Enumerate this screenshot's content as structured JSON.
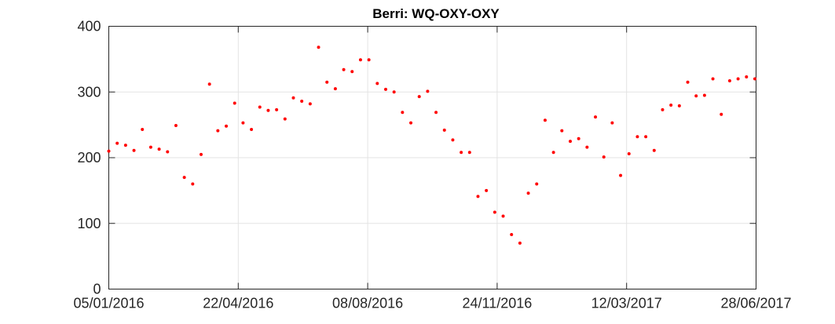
{
  "chart_data": {
    "type": "scatter",
    "title": "Berri: WQ-OXY-OXY",
    "xlabel": "",
    "ylabel": "",
    "xlim": [
      "2016-01-05",
      "2017-06-28"
    ],
    "ylim": [
      0,
      400
    ],
    "grid": true,
    "marker_color": "#ff0000",
    "x_ticks": [
      "05/01/2016",
      "22/04/2016",
      "08/08/2016",
      "24/11/2016",
      "12/03/2017",
      "28/06/2017"
    ],
    "x_tick_dates": [
      "2016-01-05",
      "2016-04-22",
      "2016-08-08",
      "2016-11-24",
      "2017-03-12",
      "2017-06-28"
    ],
    "y_ticks": [
      "0",
      "100",
      "200",
      "300",
      "400"
    ],
    "y_tick_values": [
      0,
      100,
      200,
      300,
      400
    ],
    "series": [
      {
        "points": [
          [
            "2016-01-05",
            210
          ],
          [
            "2016-01-12",
            222
          ],
          [
            "2016-01-19",
            219
          ],
          [
            "2016-01-26",
            211
          ],
          [
            "2016-02-02",
            243
          ],
          [
            "2016-02-09",
            216
          ],
          [
            "2016-02-16",
            213
          ],
          [
            "2016-02-23",
            209
          ],
          [
            "2016-03-01",
            249
          ],
          [
            "2016-03-08",
            170
          ],
          [
            "2016-03-15",
            160
          ],
          [
            "2016-03-22",
            205
          ],
          [
            "2016-03-29",
            312
          ],
          [
            "2016-04-05",
            241
          ],
          [
            "2016-04-12",
            248
          ],
          [
            "2016-04-19",
            283
          ],
          [
            "2016-04-26",
            253
          ],
          [
            "2016-05-03",
            243
          ],
          [
            "2016-05-10",
            277
          ],
          [
            "2016-05-17",
            272
          ],
          [
            "2016-05-24",
            273
          ],
          [
            "2016-05-31",
            259
          ],
          [
            "2016-06-07",
            291
          ],
          [
            "2016-06-14",
            286
          ],
          [
            "2016-06-21",
            282
          ],
          [
            "2016-06-28",
            368
          ],
          [
            "2016-07-05",
            315
          ],
          [
            "2016-07-12",
            305
          ],
          [
            "2016-07-19",
            334
          ],
          [
            "2016-07-26",
            331
          ],
          [
            "2016-08-02",
            349
          ],
          [
            "2016-08-09",
            349
          ],
          [
            "2016-08-16",
            313
          ],
          [
            "2016-08-23",
            304
          ],
          [
            "2016-08-30",
            300
          ],
          [
            "2016-09-06",
            269
          ],
          [
            "2016-09-13",
            253
          ],
          [
            "2016-09-20",
            293
          ],
          [
            "2016-09-27",
            301
          ],
          [
            "2016-10-04",
            269
          ],
          [
            "2016-10-11",
            242
          ],
          [
            "2016-10-18",
            227
          ],
          [
            "2016-10-25",
            208
          ],
          [
            "2016-11-01",
            208
          ],
          [
            "2016-11-08",
            141
          ],
          [
            "2016-11-15",
            150
          ],
          [
            "2016-11-22",
            117
          ],
          [
            "2016-11-29",
            111
          ],
          [
            "2016-12-06",
            83
          ],
          [
            "2016-12-13",
            70
          ],
          [
            "2016-12-20",
            146
          ],
          [
            "2016-12-27",
            160
          ],
          [
            "2017-01-03",
            257
          ],
          [
            "2017-01-10",
            208
          ],
          [
            "2017-01-17",
            241
          ],
          [
            "2017-01-24",
            225
          ],
          [
            "2017-01-31",
            229
          ],
          [
            "2017-02-07",
            216
          ],
          [
            "2017-02-14",
            262
          ],
          [
            "2017-02-21",
            201
          ],
          [
            "2017-02-28",
            253
          ],
          [
            "2017-03-07",
            173
          ],
          [
            "2017-03-14",
            206
          ],
          [
            "2017-03-21",
            232
          ],
          [
            "2017-03-28",
            232
          ],
          [
            "2017-04-04",
            211
          ],
          [
            "2017-04-11",
            273
          ],
          [
            "2017-04-18",
            280
          ],
          [
            "2017-04-25",
            279
          ],
          [
            "2017-05-02",
            315
          ],
          [
            "2017-05-09",
            294
          ],
          [
            "2017-05-16",
            295
          ],
          [
            "2017-05-23",
            320
          ],
          [
            "2017-05-30",
            266
          ],
          [
            "2017-06-06",
            317
          ],
          [
            "2017-06-13",
            320
          ],
          [
            "2017-06-20",
            323
          ],
          [
            "2017-06-27",
            320
          ]
        ]
      }
    ]
  }
}
